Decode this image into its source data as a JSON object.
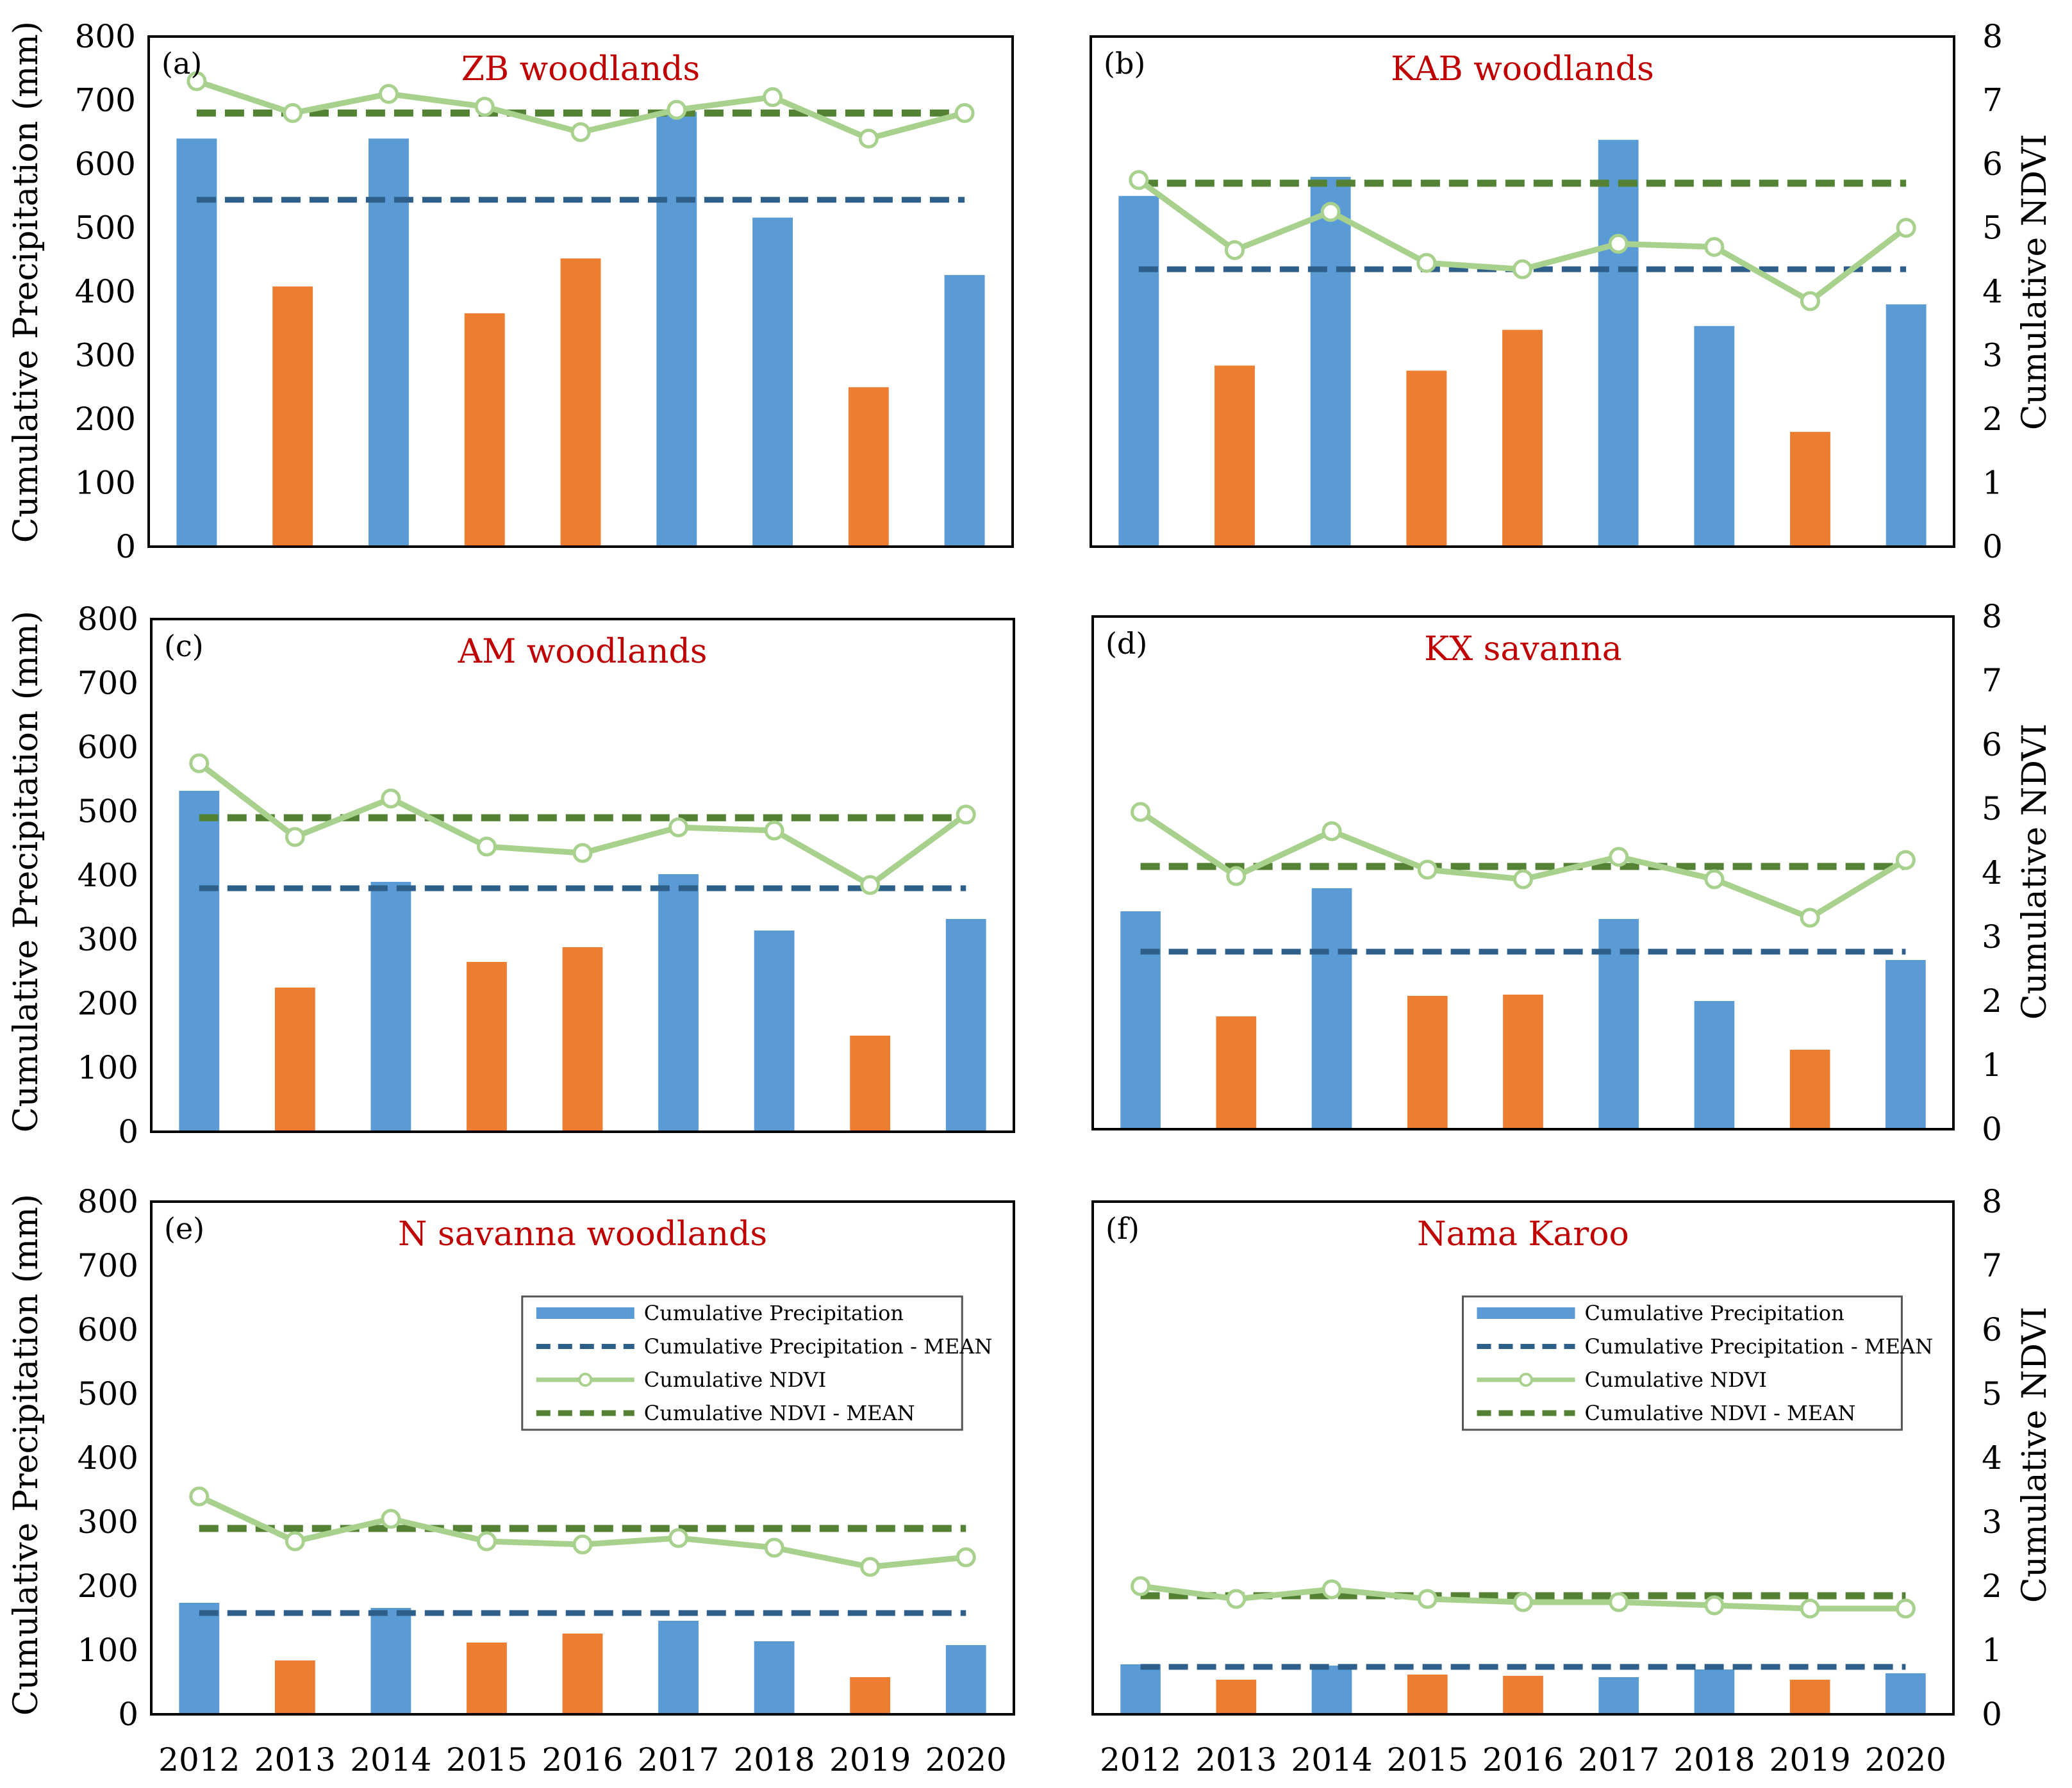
{
  "colors": {
    "precip_wet": "#5b9bd5",
    "precip_dry": "#ed7d31",
    "precip_mean": "#2e5f8a",
    "ndvi": "#a9d18e",
    "ndvi_mean": "#548235",
    "title": "#c00000"
  },
  "axes": {
    "ylabel_left": "Cumulative Precipitation (mm)",
    "ylabel_right": "Cumulative NDVI",
    "left_ticks": [
      "0",
      "100",
      "200",
      "300",
      "400",
      "500",
      "600",
      "700",
      "800"
    ],
    "right_ticks": [
      "0",
      "1",
      "2",
      "3",
      "4",
      "5",
      "6",
      "7",
      "8"
    ],
    "years": [
      "2012",
      "2013",
      "2014",
      "2015",
      "2016",
      "2017",
      "2018",
      "2019",
      "2020"
    ]
  },
  "legend": {
    "precip": "Cumulative Precipitation",
    "precip_mean": "Cumulative Precipitation - MEAN",
    "ndvi": "Cumulative NDVI",
    "ndvi_mean": "Cumulative NDVI - MEAN"
  },
  "chart_data": [
    {
      "type": "bar",
      "id": "a",
      "label": "(a)",
      "title": "ZB woodlands",
      "categories": [
        "2012",
        "2013",
        "2014",
        "2015",
        "2016",
        "2017",
        "2018",
        "2019",
        "2020"
      ],
      "precip": [
        640,
        408,
        640,
        366,
        452,
        682,
        516,
        250,
        426
      ],
      "precip_class": [
        "wet",
        "dry",
        "wet",
        "dry",
        "dry",
        "wet",
        "wet",
        "dry",
        "wet"
      ],
      "precip_mean": 544,
      "ndvi": [
        7.3,
        6.8,
        7.1,
        6.9,
        6.5,
        6.85,
        7.05,
        6.4,
        6.8
      ],
      "ndvi_mean": 6.8,
      "ylim_left": [
        0,
        800
      ],
      "ylim_right": [
        0,
        8
      ],
      "legend": false
    },
    {
      "type": "bar",
      "id": "b",
      "label": "(b)",
      "title": "KAB woodlands",
      "categories": [
        "2012",
        "2013",
        "2014",
        "2015",
        "2016",
        "2017",
        "2018",
        "2019",
        "2020"
      ],
      "precip": [
        550,
        284,
        580,
        276,
        340,
        638,
        346,
        180,
        380
      ],
      "precip_class": [
        "wet",
        "dry",
        "wet",
        "dry",
        "dry",
        "wet",
        "wet",
        "dry",
        "wet"
      ],
      "precip_mean": 435,
      "ndvi": [
        5.75,
        4.65,
        5.25,
        4.45,
        4.35,
        4.75,
        4.7,
        3.85,
        5.0
      ],
      "ndvi_mean": 5.7,
      "ylim_left": [
        0,
        800
      ],
      "ylim_right": [
        0,
        8
      ],
      "legend": false
    },
    {
      "type": "bar",
      "id": "c",
      "label": "(c)",
      "title": "AM woodlands",
      "categories": [
        "2012",
        "2013",
        "2014",
        "2015",
        "2016",
        "2017",
        "2018",
        "2019",
        "2020"
      ],
      "precip": [
        532,
        225,
        390,
        265,
        288,
        402,
        314,
        150,
        332
      ],
      "precip_class": [
        "wet",
        "dry",
        "wet",
        "dry",
        "dry",
        "wet",
        "wet",
        "dry",
        "wet"
      ],
      "precip_mean": 380,
      "ndvi": [
        5.75,
        4.6,
        5.2,
        4.45,
        4.35,
        4.75,
        4.7,
        3.85,
        4.95
      ],
      "ndvi_mean": 4.9,
      "ylim_left": [
        0,
        800
      ],
      "ylim_right": [
        0,
        8
      ],
      "legend": false
    },
    {
      "type": "bar",
      "id": "d",
      "label": "(d)",
      "title": "KX savanna",
      "categories": [
        "2012",
        "2013",
        "2014",
        "2015",
        "2016",
        "2017",
        "2018",
        "2019",
        "2020"
      ],
      "precip": [
        340,
        176,
        376,
        208,
        210,
        328,
        200,
        124,
        264
      ],
      "precip_class": [
        "wet",
        "dry",
        "wet",
        "dry",
        "dry",
        "wet",
        "wet",
        "dry",
        "wet"
      ],
      "precip_mean": 277,
      "ndvi": [
        4.95,
        3.95,
        4.65,
        4.05,
        3.9,
        4.25,
        3.9,
        3.3,
        4.2
      ],
      "ndvi_mean": 4.1,
      "ylim_left": [
        0,
        800
      ],
      "ylim_right": [
        0,
        8
      ],
      "legend": false
    },
    {
      "type": "bar",
      "id": "e",
      "label": "(e)",
      "title": "N savanna woodlands",
      "categories": [
        "2012",
        "2013",
        "2014",
        "2015",
        "2016",
        "2017",
        "2018",
        "2019",
        "2020"
      ],
      "precip": [
        174,
        84,
        166,
        112,
        126,
        146,
        114,
        58,
        108
      ],
      "precip_class": [
        "wet",
        "dry",
        "wet",
        "dry",
        "dry",
        "wet",
        "wet",
        "dry",
        "wet"
      ],
      "precip_mean": 158,
      "ndvi": [
        3.4,
        2.7,
        3.05,
        2.7,
        2.65,
        2.75,
        2.6,
        2.3,
        2.45
      ],
      "ndvi_mean": 2.9,
      "ylim_left": [
        0,
        800
      ],
      "ylim_right": [
        0,
        8
      ],
      "legend": true
    },
    {
      "type": "bar",
      "id": "f",
      "label": "(f)",
      "title": "Nama Karoo",
      "categories": [
        "2012",
        "2013",
        "2014",
        "2015",
        "2016",
        "2017",
        "2018",
        "2019",
        "2020"
      ],
      "precip": [
        78,
        54,
        76,
        62,
        60,
        58,
        70,
        54,
        64
      ],
      "precip_class": [
        "wet",
        "dry",
        "wet",
        "dry",
        "dry",
        "wet",
        "wet",
        "dry",
        "wet"
      ],
      "precip_mean": 74,
      "ndvi": [
        2.0,
        1.8,
        1.95,
        1.8,
        1.75,
        1.75,
        1.7,
        1.65,
        1.65
      ],
      "ndvi_mean": 1.85,
      "ylim_left": [
        0,
        800
      ],
      "ylim_right": [
        0,
        8
      ],
      "legend": true
    }
  ]
}
